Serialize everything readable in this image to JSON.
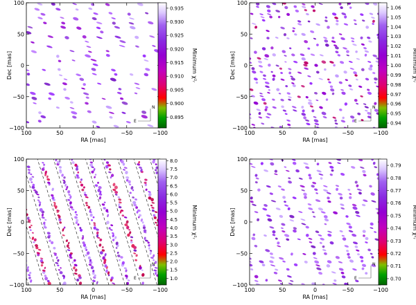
{
  "chart_data": [
    {
      "type": "heatmap",
      "xlabel": "RA [mas]",
      "ylabel": "Dec [mas]",
      "colorbar_label": "Minimum χ²ᵣ",
      "xlim": [
        100,
        -100
      ],
      "ylim": [
        -100,
        100
      ],
      "x_ticks": [
        "100",
        "50",
        "0",
        "−50",
        "−100"
      ],
      "y_ticks": [
        "100",
        "50",
        "0",
        "−50",
        "−100"
      ],
      "colorbar_ticks": [
        "0.935",
        "0.930",
        "0.925",
        "0.920",
        "0.915",
        "0.910",
        "0.905",
        "0.900",
        "0.895"
      ],
      "colorbar_range": [
        0.891,
        0.937
      ],
      "compass": {
        "north": "N",
        "east": "E"
      },
      "pattern": {
        "fringe_slope": 3.2,
        "fringe_spacing": 26,
        "band": 0.32,
        "blob_period": 7.5,
        "density": 0.55
      }
    },
    {
      "type": "heatmap",
      "xlabel": "RA [mas]",
      "ylabel": "Dec [mas]",
      "colorbar_label": "Minimum χ²ᵣ",
      "xlim": [
        100,
        -100
      ],
      "ylim": [
        -100,
        100
      ],
      "x_ticks": [
        "100",
        "50",
        "0",
        "−50",
        "−100"
      ],
      "y_ticks": [
        "100",
        "50",
        "0",
        "−50",
        "−100"
      ],
      "colorbar_ticks": [
        "1.06",
        "1.05",
        "1.04",
        "1.03",
        "1.02",
        "1.01",
        "1.00",
        "0.99",
        "0.98",
        "0.97",
        "0.96",
        "0.95",
        "0.94"
      ],
      "colorbar_range": [
        0.935,
        1.065
      ],
      "compass": {
        "north": "N",
        "east": "E"
      },
      "pattern": {
        "fringe_slope": 3.0,
        "fringe_spacing": 14,
        "band": 0.28,
        "blob_period": 5.5,
        "density": 0.5
      }
    },
    {
      "type": "heatmap",
      "xlabel": "RA [mas]",
      "ylabel": "Dec [mas]",
      "colorbar_label": "Minimum χ²ᵣ",
      "xlim": [
        100,
        -100
      ],
      "ylim": [
        -100,
        100
      ],
      "x_ticks": [
        "100",
        "50",
        "0",
        "−50",
        "−100"
      ],
      "y_ticks": [
        "100",
        "50",
        "0",
        "−50",
        "−100"
      ],
      "colorbar_ticks": [
        "8.0",
        "7.5",
        "7.0",
        "6.5",
        "6.0",
        "5.5",
        "5.0",
        "4.5",
        "4.0",
        "3.5",
        "3.0",
        "2.5",
        "2.0",
        "1.5",
        "1.0"
      ],
      "colorbar_range": [
        0.6,
        8.1
      ],
      "compass": {
        "north": "N",
        "east": "E"
      },
      "pattern": {
        "fringe_slope": 3.4,
        "fringe_spacing": 24,
        "band": 0.22,
        "blob_period": 4.0,
        "density": 0.92
      }
    },
    {
      "type": "heatmap",
      "xlabel": "RA [mas]",
      "ylabel": "Dec [mas]",
      "colorbar_label": "Minimum χ²ᵣ",
      "xlim": [
        100,
        -100
      ],
      "ylim": [
        -100,
        100
      ],
      "x_ticks": [
        "100",
        "50",
        "0",
        "−50",
        "−100"
      ],
      "y_ticks": [
        "100",
        "50",
        "0",
        "−50",
        "−100"
      ],
      "colorbar_ticks": [
        "0.79",
        "0.78",
        "0.77",
        "0.76",
        "0.75",
        "0.74",
        "0.73",
        "0.72",
        "0.71",
        "0.70"
      ],
      "colorbar_range": [
        0.695,
        0.795
      ],
      "compass": {
        "north": "N",
        "east": "E"
      },
      "pattern": {
        "fringe_slope": 3.1,
        "fringe_spacing": 17,
        "band": 0.27,
        "blob_period": 6.0,
        "density": 0.6
      }
    }
  ],
  "colors": {
    "colormap": [
      "#006400",
      "#00a000",
      "#7fbf00",
      "#ff0000",
      "#e00070",
      "#c000c0",
      "#9400d3",
      "#8a2be2",
      "#a060f0",
      "#dcc8ff",
      "#ffffff"
    ]
  }
}
